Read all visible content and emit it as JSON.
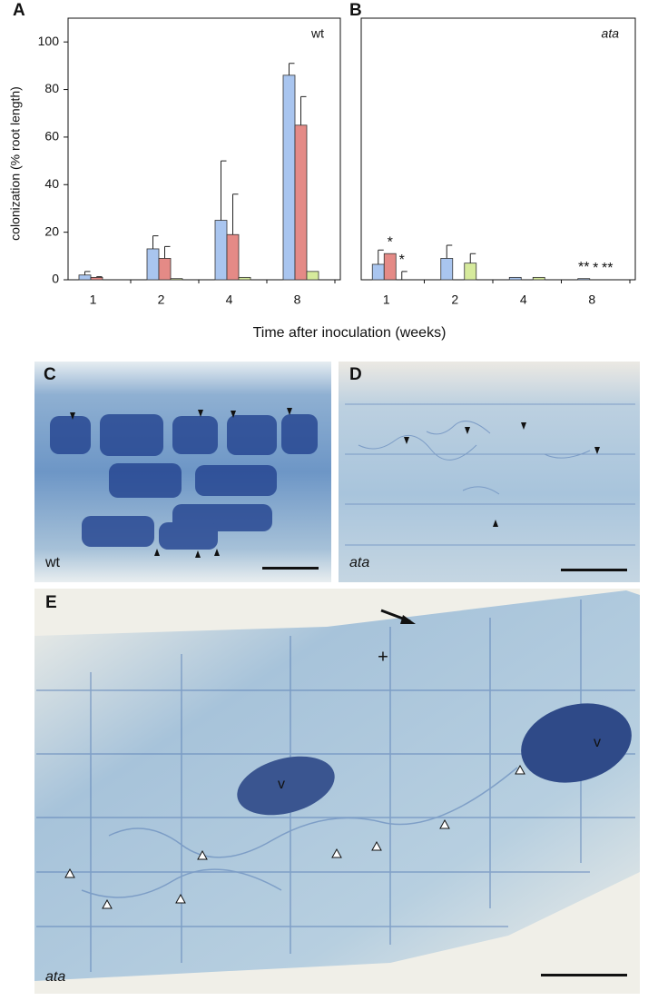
{
  "chart_data": [
    {
      "type": "bar",
      "panel": "A",
      "annotation": "wt",
      "ylabel": "colonization (% root length)",
      "categories": [
        "1",
        "2",
        "4",
        "8"
      ],
      "series": [
        {
          "color": "#a9c5ef",
          "values": [
            2,
            13,
            25,
            86
          ],
          "errors": [
            1.5,
            5.5,
            25,
            5
          ]
        },
        {
          "color": "#e48a86",
          "values": [
            1,
            9,
            19,
            65
          ],
          "errors": [
            0.3,
            5,
            17,
            12
          ]
        },
        {
          "color": "#d6ea9c",
          "values": [
            null,
            0.5,
            1,
            3.5
          ],
          "errors": [
            null,
            null,
            null,
            null
          ]
        }
      ],
      "ylim": [
        0,
        110
      ],
      "yticks": [
        0,
        20,
        40,
        60,
        80,
        100
      ]
    },
    {
      "type": "bar",
      "panel": "B",
      "annotation": "ata",
      "categories": [
        "1",
        "2",
        "4",
        "8"
      ],
      "series": [
        {
          "color": "#a9c5ef",
          "values": [
            6.5,
            9,
            1,
            0.5
          ],
          "errors": [
            6,
            5.5,
            null,
            null
          ]
        },
        {
          "color": "#e48a86",
          "values": [
            11,
            null,
            null,
            null
          ],
          "errors": [
            null,
            null,
            null,
            null
          ]
        },
        {
          "color": "#d6ea9c",
          "values": [
            0,
            7,
            1,
            null
          ],
          "errors": [
            3.5,
            4,
            null,
            null
          ]
        }
      ],
      "ylim": [
        0,
        110
      ],
      "annotations": [
        {
          "text": "*",
          "series": 1,
          "category": 0
        },
        {
          "text": "*",
          "series": 2,
          "category": 0
        },
        {
          "text": "**",
          "series": 0,
          "category": 3
        },
        {
          "text": "*",
          "series": 1,
          "category": 3
        },
        {
          "text": "**",
          "series": 2,
          "category": 3
        }
      ]
    }
  ],
  "shared_xlabel": "Time after inoculation (weeks)",
  "images": {
    "C": {
      "label": "C",
      "genotype": "wt"
    },
    "D": {
      "label": "D",
      "genotype": "ata"
    },
    "E": {
      "label": "E",
      "genotype": "ata",
      "marks": [
        "v",
        "v",
        "+"
      ]
    }
  }
}
